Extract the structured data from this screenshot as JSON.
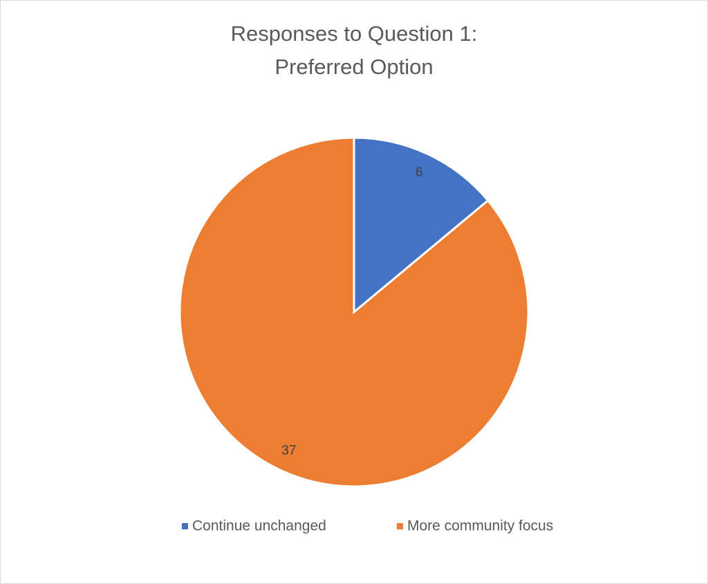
{
  "chart_data": {
    "type": "pie",
    "title": [
      "Responses to Question 1:",
      "Preferred Option"
    ],
    "categories": [
      "Continue unchanged",
      "More community focus"
    ],
    "values": [
      6,
      37
    ],
    "colors": [
      "#4472c4",
      "#ed7d31"
    ],
    "legend": "bottom"
  }
}
